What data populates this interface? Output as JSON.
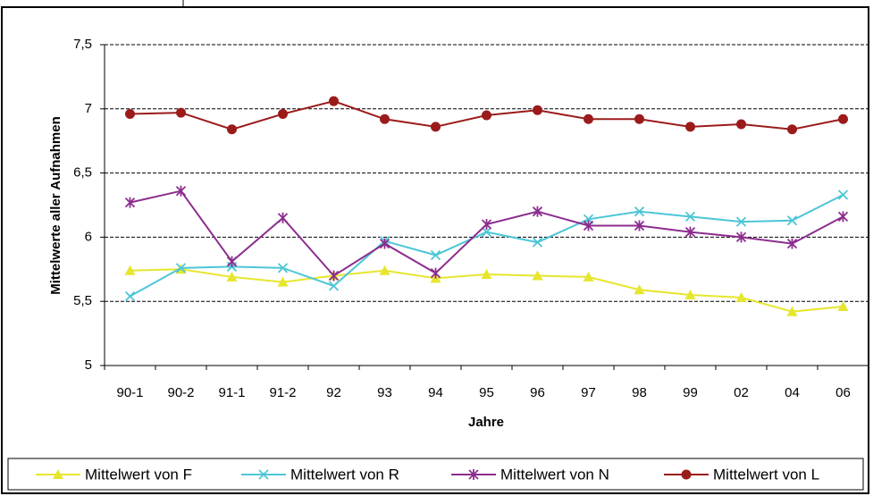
{
  "chart_data": {
    "type": "line",
    "x_label": "Jahre",
    "y_label": "Mittelwerte aller Aufnahmen",
    "categories": [
      "90-1",
      "90-2",
      "91-1",
      "91-2",
      "92",
      "93",
      "94",
      "95",
      "96",
      "97",
      "98",
      "99",
      "02",
      "04",
      "06"
    ],
    "ylim": [
      5,
      7.5
    ],
    "yticks": [
      5,
      {
        "value": 5.5,
        "label": "5,5"
      },
      6,
      {
        "value": 6.5,
        "label": "6,5"
      },
      7,
      {
        "value": 7.5,
        "label": "7,5"
      }
    ],
    "grid": true,
    "legend": "bottom",
    "series": [
      {
        "name": "Mittelwert von F",
        "color": "#e6e62e",
        "marker": "triangle",
        "values": [
          5.74,
          5.75,
          5.69,
          5.65,
          5.7,
          5.74,
          5.68,
          5.71,
          5.7,
          5.69,
          5.59,
          5.55,
          5.53,
          5.42,
          5.46
        ]
      },
      {
        "name": "Mittelwert von R",
        "color": "#4cc6d6",
        "marker": "x",
        "values": [
          5.54,
          5.76,
          5.77,
          5.76,
          5.62,
          5.97,
          5.86,
          6.04,
          5.96,
          6.14,
          6.2,
          6.16,
          6.12,
          6.13,
          6.33
        ]
      },
      {
        "name": "Mittelwert von N",
        "color": "#8c2d8e",
        "marker": "asterisk",
        "values": [
          6.27,
          6.36,
          5.81,
          6.15,
          5.7,
          5.95,
          5.72,
          6.1,
          6.2,
          6.09,
          6.09,
          6.04,
          6.0,
          5.95,
          6.16
        ]
      },
      {
        "name": "Mittelwert von L",
        "color": "#9b1b1b",
        "marker": "circle",
        "values": [
          6.96,
          6.97,
          6.84,
          6.96,
          7.06,
          6.92,
          6.86,
          6.95,
          6.99,
          6.92,
          6.92,
          6.86,
          6.88,
          6.84,
          6.92
        ]
      }
    ]
  }
}
